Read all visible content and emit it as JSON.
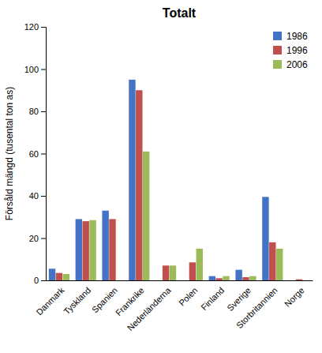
{
  "chart_data": {
    "type": "bar",
    "title": "Totalt",
    "ylabel": "Försåld mängd (tusental ton as)",
    "categories": [
      "Danmark",
      "Tyskland",
      "Spanien",
      "Frankrike",
      "Nederländerna",
      "Polen",
      "Finland",
      "Sverige",
      "Storbritannien",
      "Norge"
    ],
    "series": [
      {
        "name": "1986",
        "color": "#4472C4",
        "values": [
          5.5,
          29,
          33,
          95,
          0,
          0,
          2,
          5,
          39.5,
          0
        ]
      },
      {
        "name": "1996",
        "color": "#C0504D",
        "values": [
          3.5,
          28,
          29,
          90,
          7,
          8.5,
          1,
          1.5,
          18,
          0.5
        ]
      },
      {
        "name": "2006",
        "color": "#9BBB59",
        "values": [
          3,
          28.5,
          0,
          61,
          7,
          15,
          2,
          2,
          15,
          0
        ]
      }
    ],
    "ylim": [
      0,
      120
    ],
    "yticks": [
      0,
      20,
      40,
      60,
      80,
      100,
      120
    ],
    "legend": "upper right"
  }
}
